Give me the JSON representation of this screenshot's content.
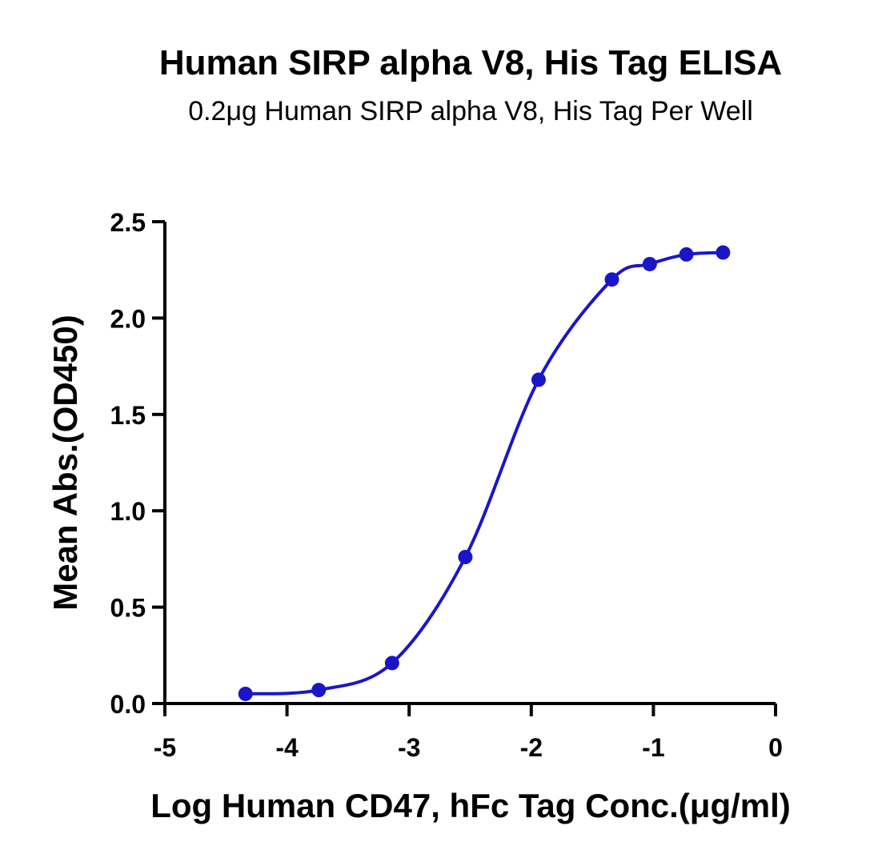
{
  "chart_data": {
    "type": "scatter",
    "title": "Human SIRP alpha V8, His Tag ELISA",
    "subtitle": "0.2μg Human SIRP alpha V8, His Tag Per Well",
    "xlabel": "Log Human CD47, hFc Tag Conc.(μg/ml)",
    "ylabel": "Mean Abs.(OD450)",
    "xlim": [
      -5,
      0
    ],
    "ylim": [
      0,
      2.5
    ],
    "x_ticks": [
      -5,
      -4,
      -3,
      -2,
      -1,
      0
    ],
    "y_ticks": [
      0.0,
      0.5,
      1.0,
      1.5,
      2.0,
      2.5
    ],
    "x_tick_labels": [
      "-5",
      "-4",
      "-3",
      "-2",
      "-1",
      "0"
    ],
    "y_tick_labels": [
      "0.0",
      "0.5",
      "1.0",
      "1.5",
      "2.0",
      "2.5"
    ],
    "grid": false,
    "legend": "none",
    "series": [
      {
        "color": "#1a16c8",
        "marker": "circle",
        "fit": "sigmoidal",
        "x": [
          -4.34,
          -3.74,
          -3.14,
          -2.54,
          -1.94,
          -1.34,
          -1.03,
          -0.73,
          -0.43
        ],
        "y": [
          0.05,
          0.07,
          0.21,
          0.76,
          1.68,
          2.2,
          2.28,
          2.33,
          2.34
        ]
      }
    ]
  }
}
